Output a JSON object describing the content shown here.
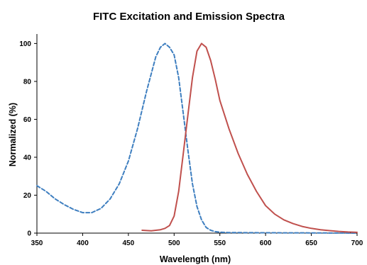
{
  "chart_data": {
    "type": "line",
    "title": "FITC Excitation and Emission Spectra",
    "xlabel": "Wavelength (nm)",
    "ylabel": "Normalized (%)",
    "xlim": [
      350,
      700
    ],
    "ylim": [
      0,
      105
    ],
    "xticks": [
      "350",
      "400",
      "450",
      "500",
      "550",
      "600",
      "650",
      "700"
    ],
    "yticks": [
      "0",
      "20",
      "40",
      "60",
      "80",
      "100"
    ],
    "grid": false,
    "legend": "none",
    "series": [
      {
        "color": "#3f7fc0",
        "style": "dashed",
        "x": [
          350,
          360,
          370,
          380,
          390,
          400,
          410,
          420,
          430,
          440,
          450,
          460,
          470,
          480,
          485,
          490,
          495,
          500,
          505,
          510,
          515,
          520,
          525,
          530,
          535,
          540,
          545,
          550,
          560,
          600,
          650,
          700
        ],
        "y": [
          25,
          22,
          18,
          15,
          12.5,
          10.8,
          10.8,
          13,
          18,
          26,
          38,
          55,
          75,
          93,
          98,
          100,
          98,
          94,
          82,
          63,
          44,
          26,
          14,
          7,
          3,
          1.5,
          0.8,
          0.5,
          0.3,
          0.2,
          0.1,
          0
        ]
      },
      {
        "color": "#c0504d",
        "style": "solid",
        "x": [
          465,
          475,
          485,
          490,
          495,
          500,
          505,
          510,
          515,
          520,
          525,
          530,
          535,
          540,
          545,
          550,
          560,
          570,
          580,
          590,
          600,
          610,
          620,
          630,
          640,
          650,
          660,
          670,
          680,
          690,
          700
        ],
        "y": [
          1.5,
          1.2,
          1.8,
          2.5,
          4,
          9,
          22,
          42,
          62,
          82,
          96,
          100,
          98,
          91,
          81,
          70,
          55,
          42,
          31,
          22,
          14.5,
          10,
          7,
          5,
          3.5,
          2.5,
          1.8,
          1.3,
          0.9,
          0.6,
          0.4
        ]
      }
    ]
  }
}
